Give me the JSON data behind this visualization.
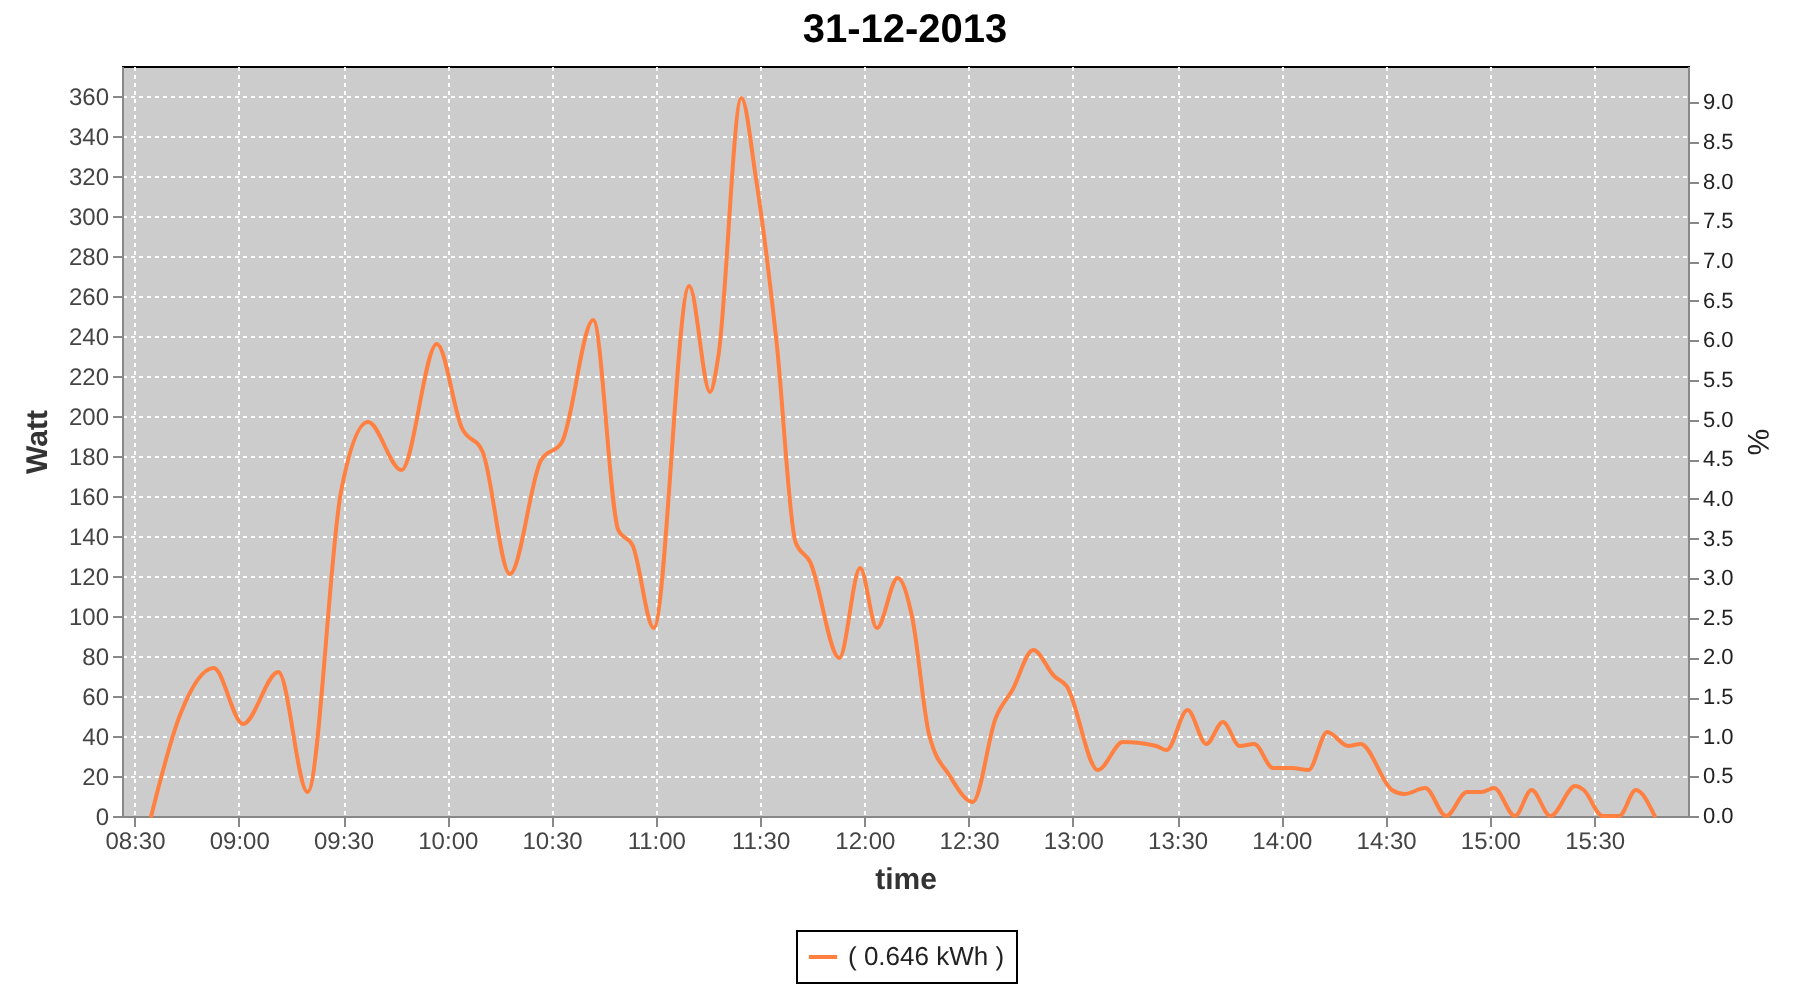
{
  "chart_data": {
    "type": "line",
    "title": "31-12-2013",
    "xlabel": "time",
    "ylabel": "Watt",
    "y2label": "%",
    "x": [
      8.58,
      8.72,
      8.88,
      9.02,
      9.19,
      9.33,
      9.49,
      9.62,
      9.78,
      9.95,
      10.07,
      10.17,
      10.3,
      10.45,
      10.55,
      10.7,
      10.82,
      10.89,
      10.99,
      11.16,
      11.26,
      11.3,
      11.41,
      11.48,
      11.58,
      11.67,
      11.74,
      11.88,
      11.98,
      12.06,
      12.16,
      12.23,
      12.31,
      12.41,
      12.52,
      12.63,
      12.71,
      12.81,
      12.91,
      12.97,
      13.12,
      13.24,
      13.4,
      13.45,
      13.55,
      13.64,
      13.72,
      13.8,
      13.87,
      13.96,
      14.05,
      14.13,
      14.22,
      14.32,
      14.38,
      14.53,
      14.59,
      14.69,
      14.79,
      14.89,
      14.96,
      15.02,
      15.12,
      15.2,
      15.29,
      15.41,
      15.45,
      15.54,
      15.62,
      15.7,
      15.79
    ],
    "series": [
      {
        "name": "( 0.646 kWh )",
        "color": "#ff8040",
        "values": [
          0,
          51,
          74,
          46,
          72,
          12,
          162,
          197,
          173,
          236,
          194,
          182,
          121,
          178,
          187,
          248,
          143,
          135,
          94,
          265,
          212,
          230,
          359,
          319,
          236,
          137,
          127,
          79,
          124,
          94,
          119,
          99,
          41,
          20,
          7,
          49,
          63,
          83,
          70,
          65,
          23,
          37,
          35,
          33,
          53,
          36,
          47,
          35,
          36,
          24,
          24,
          23,
          42,
          35,
          36,
          13,
          11,
          14,
          0,
          12,
          12,
          14,
          0,
          13,
          0,
          15,
          13,
          0,
          0,
          13,
          0
        ]
      }
    ],
    "xlim": [
      8.44,
      15.95
    ],
    "xticks": [
      {
        "value": 8.5,
        "label": "08:30"
      },
      {
        "value": 9,
        "label": "09:00"
      },
      {
        "value": 9.5,
        "label": "09:30"
      },
      {
        "value": 10,
        "label": "10:00"
      },
      {
        "value": 10.5,
        "label": "10:30"
      },
      {
        "value": 11,
        "label": "11:00"
      },
      {
        "value": 11.5,
        "label": "11:30"
      },
      {
        "value": 12,
        "label": "12:00"
      },
      {
        "value": 12.5,
        "label": "12:30"
      },
      {
        "value": 13,
        "label": "13:00"
      },
      {
        "value": 13.5,
        "label": "13:30"
      },
      {
        "value": 14,
        "label": "14:00"
      },
      {
        "value": 14.5,
        "label": "14:30"
      },
      {
        "value": 15,
        "label": "15:00"
      },
      {
        "value": 15.5,
        "label": "15:30"
      }
    ],
    "ylim": [
      0,
      375
    ],
    "yticks": [
      0,
      20,
      40,
      60,
      80,
      100,
      120,
      140,
      160,
      180,
      200,
      220,
      240,
      260,
      280,
      300,
      320,
      340,
      360
    ],
    "y2lim": [
      0,
      9.46
    ],
    "y2ticks": [
      {
        "value": 0,
        "label": "0.0"
      },
      {
        "value": 0.5,
        "label": "0.5"
      },
      {
        "value": 1,
        "label": "1.0"
      },
      {
        "value": 1.5,
        "label": "1.5"
      },
      {
        "value": 2,
        "label": "2.0"
      },
      {
        "value": 2.5,
        "label": "2.5"
      },
      {
        "value": 3,
        "label": "3.0"
      },
      {
        "value": 3.5,
        "label": "3.5"
      },
      {
        "value": 4,
        "label": "4.0"
      },
      {
        "value": 4.5,
        "label": "4.5"
      },
      {
        "value": 5,
        "label": "5.0"
      },
      {
        "value": 5.5,
        "label": "5.5"
      },
      {
        "value": 6,
        "label": "6.0"
      },
      {
        "value": 6.5,
        "label": "6.5"
      },
      {
        "value": 7,
        "label": "7.0"
      },
      {
        "value": 7.5,
        "label": "7.5"
      },
      {
        "value": 8,
        "label": "8.0"
      },
      {
        "value": 8.5,
        "label": "8.5"
      },
      {
        "value": 9,
        "label": "9.0"
      }
    ],
    "grid": true,
    "legend": "bottom",
    "marker": "none",
    "line_style": "solid"
  }
}
